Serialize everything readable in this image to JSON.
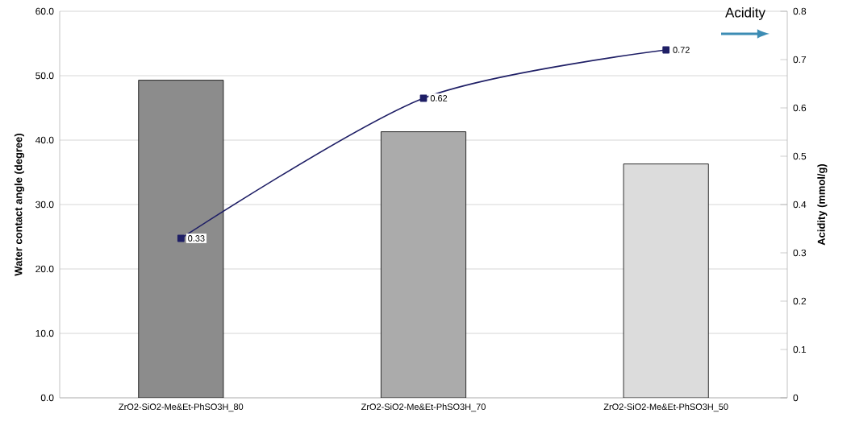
{
  "chart_data": {
    "type": "bar",
    "categories": [
      "ZrO2-SiO2-Me&Et-PhSO3H_80",
      "ZrO2-SiO2-Me&Et-PhSO3H_70",
      "ZrO2-SiO2-Me&Et-PhSO3H_50"
    ],
    "ylabel": "Water contact angle (degree)",
    "y2label": "Acidity (mmol/g)",
    "series": [
      {
        "colors": [
          "#8c8c8c",
          "#ababab",
          "#dcdcdc"
        ],
        "values": [
          49.3,
          41.3,
          36.3
        ]
      },
      {
        "type": "line",
        "axis": "y2",
        "color": "#1f1f66",
        "values": [
          0.33,
          0.62,
          0.72
        ],
        "value_labels": [
          "0.33",
          "0.62",
          "0.72"
        ]
      }
    ],
    "ylim": [
      0,
      60
    ],
    "yticks": [
      {
        "value": 0,
        "label": "0.0"
      },
      {
        "value": 10,
        "label": "10.0"
      },
      {
        "value": 20,
        "label": "20.0"
      },
      {
        "value": 30,
        "label": "30.0"
      },
      {
        "value": 40,
        "label": "40.0"
      },
      {
        "value": 50,
        "label": "50.0"
      },
      {
        "value": 60,
        "label": "60.0"
      }
    ],
    "y2lim": [
      0,
      0.8
    ],
    "y2ticks": [
      0,
      0.1,
      0.2,
      0.3,
      0.4,
      0.5,
      0.6,
      0.7,
      0.8
    ],
    "grid": "y",
    "marker": "square",
    "line_style": "solid",
    "annotations": [
      "Acidity"
    ]
  }
}
